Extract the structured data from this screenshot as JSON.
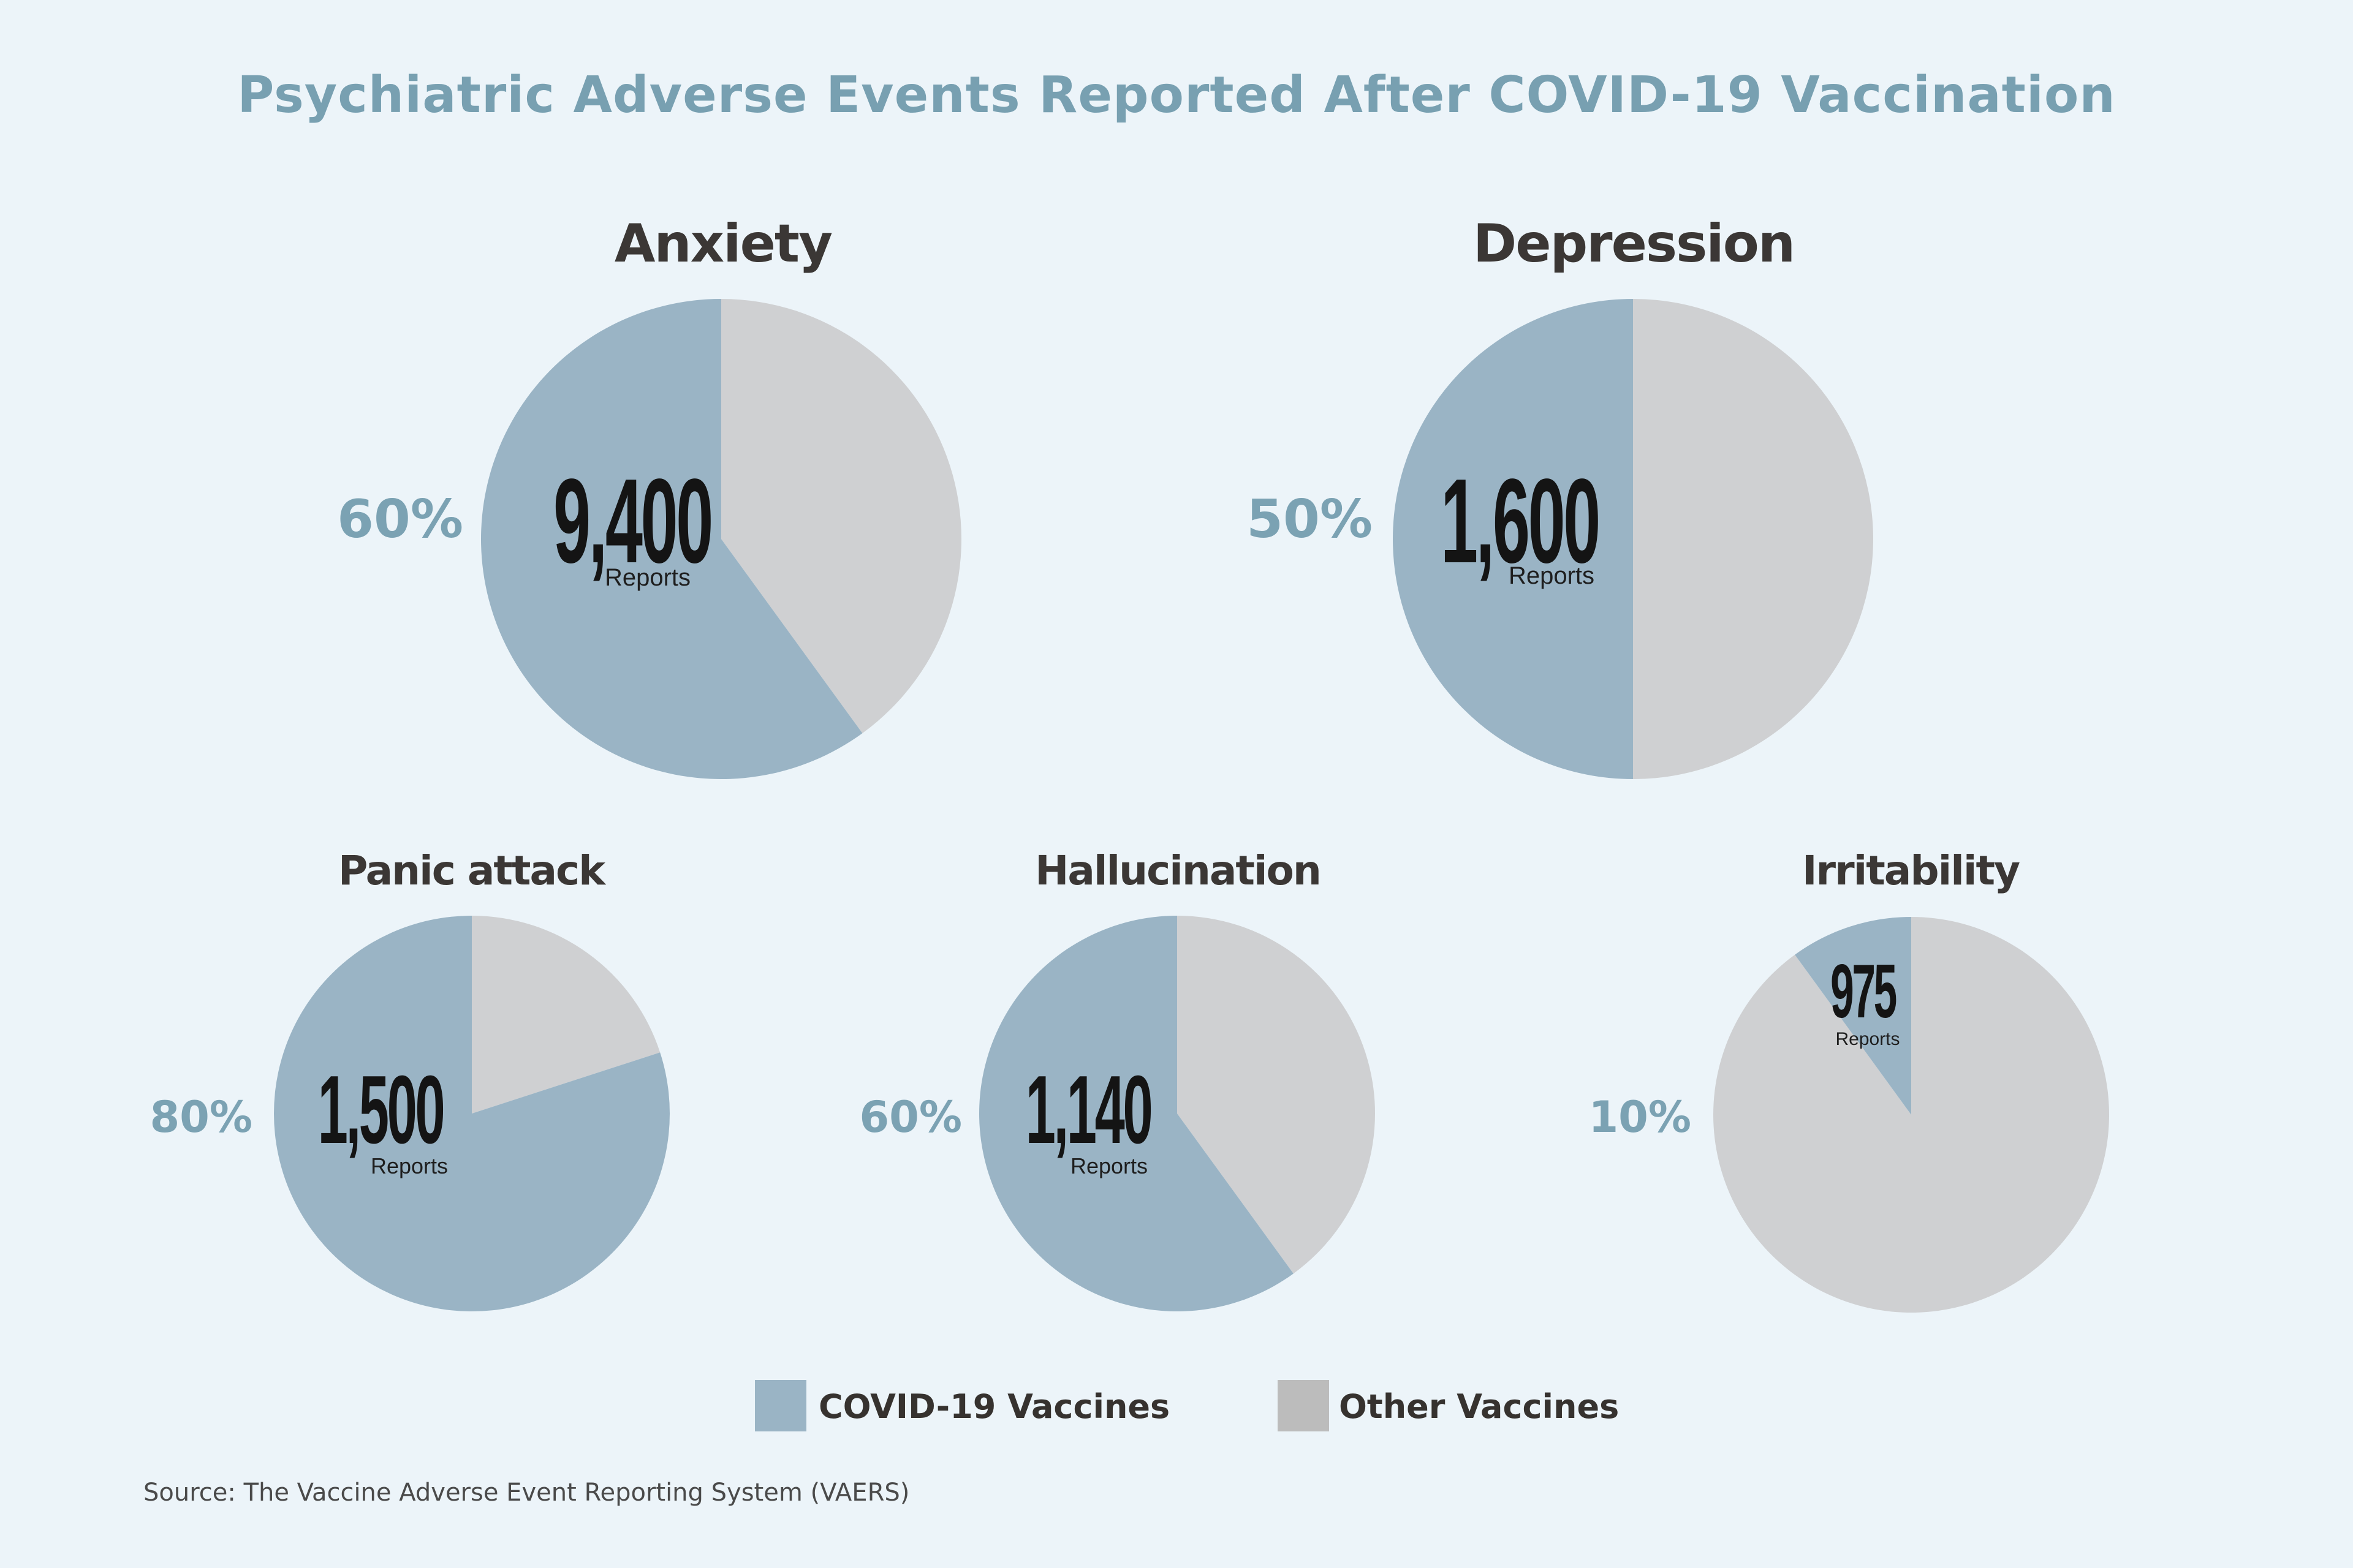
{
  "title": "Psychiatric Adverse Events Reported After COVID-19 Vaccination",
  "colors": {
    "covid": "#9ab4c5",
    "other": "#cfd0d2",
    "other_legend": "#bcbcbc",
    "background": "#ecf4f9",
    "percent_text": "#7ba2b3"
  },
  "chart_data": [
    {
      "type": "pie",
      "title": "Anxiety",
      "slices": [
        {
          "label": "COVID-19 Vaccines",
          "percent": 60
        },
        {
          "label": "Other Vaccines",
          "percent": 40
        }
      ],
      "percent_label": "60%",
      "count_label": "9,400",
      "unit_label": "Reports"
    },
    {
      "type": "pie",
      "title": "Depression",
      "slices": [
        {
          "label": "COVID-19 Vaccines",
          "percent": 50
        },
        {
          "label": "Other Vaccines",
          "percent": 50
        }
      ],
      "percent_label": "50%",
      "count_label": "1,600",
      "unit_label": "Reports"
    },
    {
      "type": "pie",
      "title": "Panic attack",
      "slices": [
        {
          "label": "COVID-19 Vaccines",
          "percent": 80
        },
        {
          "label": "Other Vaccines",
          "percent": 20
        }
      ],
      "percent_label": "80%",
      "count_label": "1,500",
      "unit_label": "Reports"
    },
    {
      "type": "pie",
      "title": "Hallucination",
      "slices": [
        {
          "label": "COVID-19 Vaccines",
          "percent": 60
        },
        {
          "label": "Other Vaccines",
          "percent": 40
        }
      ],
      "percent_label": "60%",
      "count_label": "1,140",
      "unit_label": "Reports"
    },
    {
      "type": "pie",
      "title": "Irritability",
      "slices": [
        {
          "label": "COVID-19 Vaccines",
          "percent": 10
        },
        {
          "label": "Other Vaccines",
          "percent": 90
        }
      ],
      "percent_label": "10%",
      "count_label": "975",
      "unit_label": "Reports"
    }
  ],
  "legend": [
    {
      "label": "COVID-19 Vaccines"
    },
    {
      "label": "Other Vaccines"
    }
  ],
  "source": "Source: The Vaccine Adverse Event Reporting System (VAERS)"
}
